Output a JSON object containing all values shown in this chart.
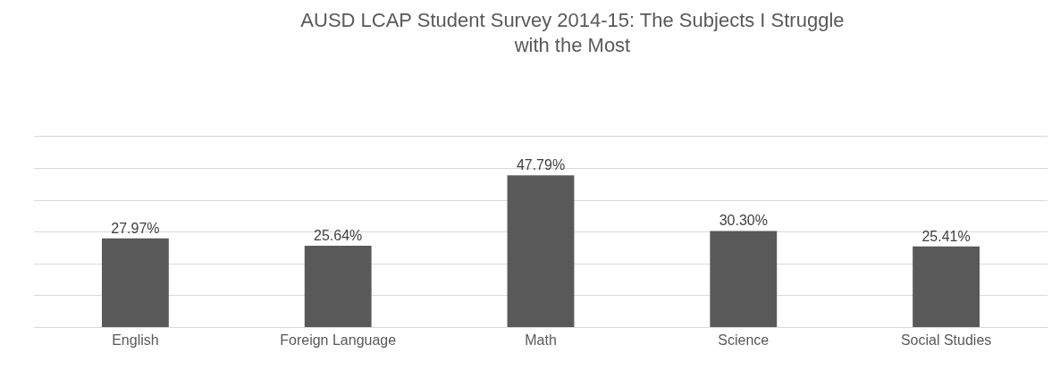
{
  "chart_data": {
    "type": "bar",
    "title": "AUSD LCAP Student Survey 2014-15: The Subjects I Struggle with the Most",
    "categories": [
      "English",
      "Foreign Language",
      "Math",
      "Science",
      "Social Studies"
    ],
    "values": [
      27.97,
      25.64,
      47.79,
      30.3,
      25.41
    ],
    "value_labels": [
      "27.97%",
      "25.64%",
      "47.79%",
      "30.30%",
      "25.41%"
    ],
    "color": "#595959",
    "ylim": [
      0,
      60
    ],
    "yticks": [
      {
        "value": 0,
        "label": null
      },
      {
        "value": 10,
        "label": null
      },
      {
        "value": 20,
        "label": null
      },
      {
        "value": 30,
        "label": null
      },
      {
        "value": 40,
        "label": null
      },
      {
        "value": 50,
        "label": null
      },
      {
        "value": 60,
        "label": null
      }
    ],
    "grid": "y",
    "legend": false,
    "tick_labels": "x"
  }
}
